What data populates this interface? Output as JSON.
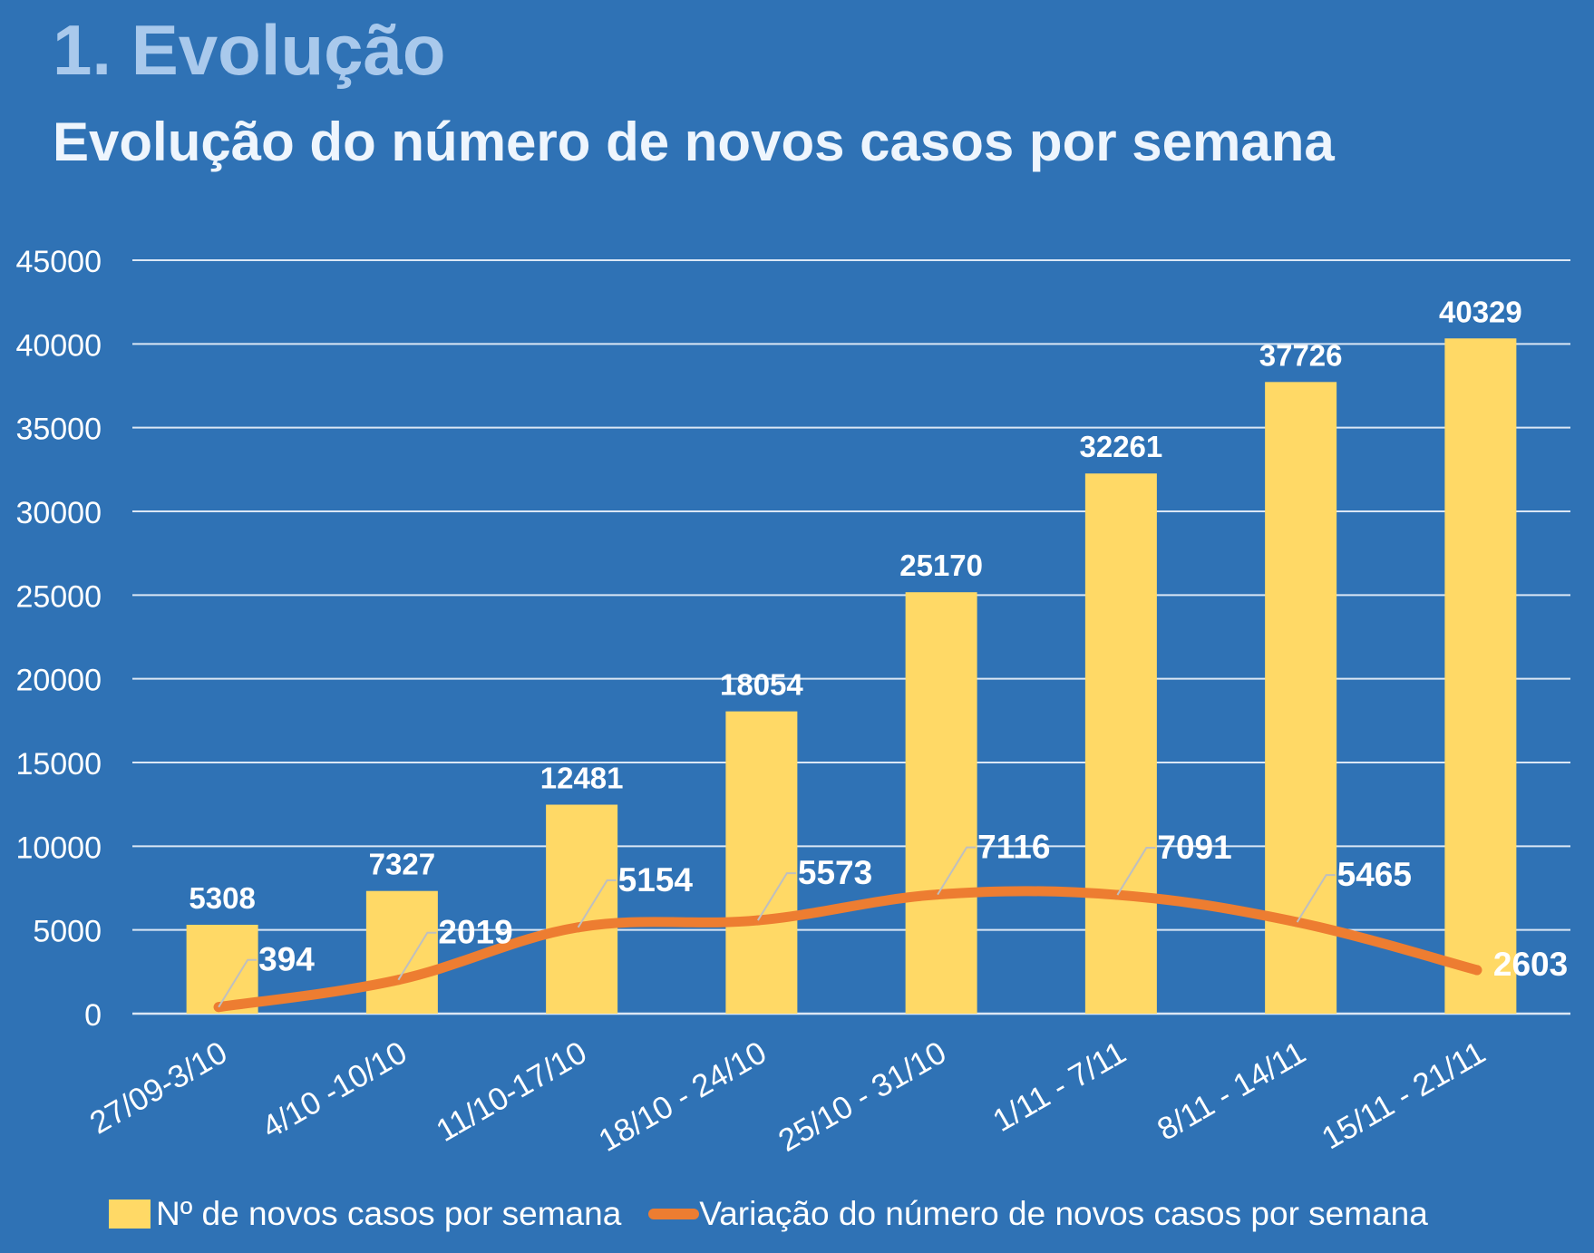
{
  "header": {
    "section_title": "1. Evolução",
    "chart_title": "Evolução do número de novos casos por semana"
  },
  "colors": {
    "background": "#2f72b5",
    "bar": "#ffd966",
    "line": "#ed7d31",
    "grid": "#dbe7f5",
    "text": "#ffffff",
    "leader": "#bfbfbf"
  },
  "chart_data": {
    "type": "bar",
    "title": "Evolução do número de novos casos por semana",
    "xlabel": "",
    "ylabel": "",
    "ylim": [
      0,
      45000
    ],
    "yticks": [
      0,
      5000,
      10000,
      15000,
      20000,
      25000,
      30000,
      35000,
      40000,
      45000
    ],
    "grid": true,
    "legend_position": "bottom",
    "categories": [
      "27/09-3/10",
      "4/10 -10/10",
      "11/10-17/10",
      "18/10 - 24/10",
      "25/10 - 31/10",
      "1/11 - 7/11",
      "8/11 - 14/11",
      "15/11 - 21/11"
    ],
    "series": [
      {
        "name": "Nº de novos casos por semana",
        "type": "bar",
        "values": [
          5308,
          7327,
          12481,
          18054,
          25170,
          32261,
          37726,
          40329
        ]
      },
      {
        "name": "Variação do número de novos casos por semana",
        "type": "line",
        "values": [
          394,
          2019,
          5154,
          5573,
          7116,
          7091,
          5465,
          2603
        ]
      }
    ]
  }
}
